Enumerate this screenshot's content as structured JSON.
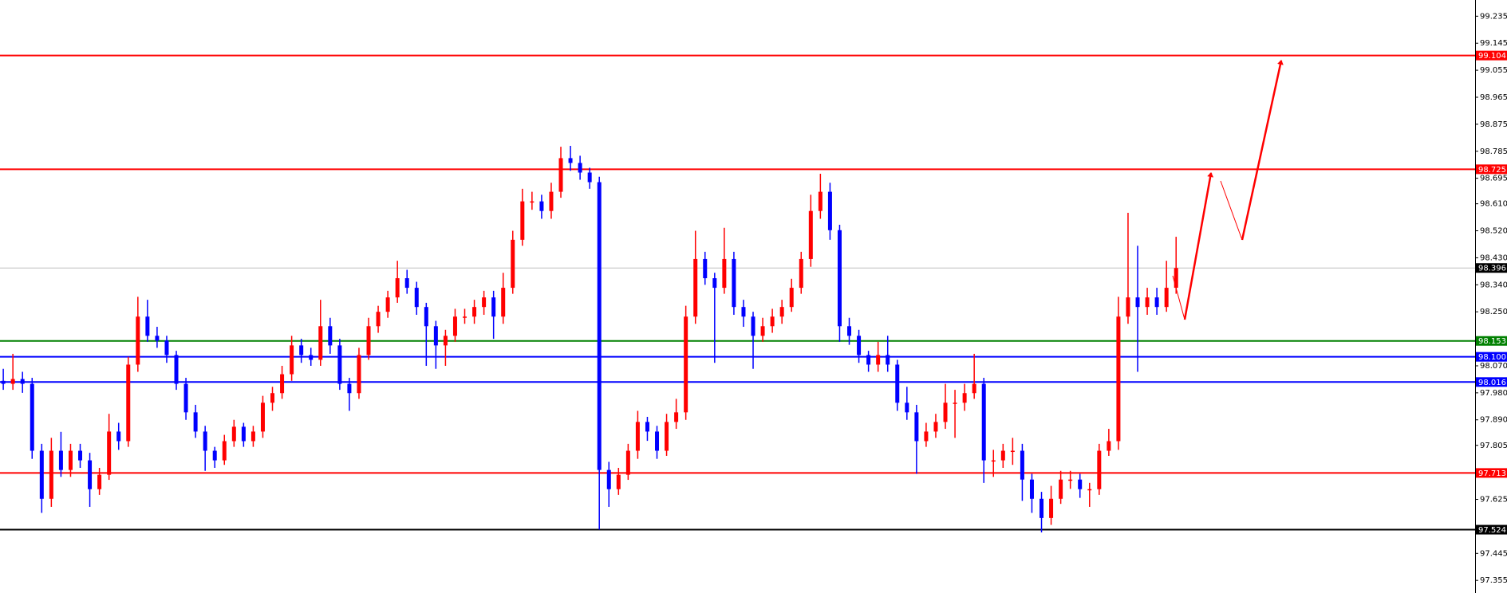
{
  "chart_data": {
    "type": "candlestick",
    "ylim": [
      97.313,
      99.289
    ],
    "yticks": [
      99.235,
      99.145,
      99.055,
      98.965,
      98.875,
      98.785,
      98.695,
      {
        "value": 98.61,
        "label": "98.610"
      },
      {
        "value": 98.52,
        "label": "98.520"
      },
      {
        "value": 98.43,
        "label": "98.430"
      },
      {
        "value": 98.34,
        "label": "98.340"
      },
      {
        "value": 98.25,
        "label": "98.250"
      },
      {
        "value": 98.07,
        "label": "98.070"
      },
      {
        "value": 97.98,
        "label": "97.980"
      },
      {
        "value": 97.89,
        "label": "97.890"
      },
      97.805,
      97.625,
      97.445,
      97.355
    ],
    "up_color": "#ff0000",
    "down_color": "#0000ff",
    "levels": [
      {
        "value": 99.104,
        "color": "#ff0000"
      },
      {
        "value": 98.725,
        "color": "#ff0000"
      },
      {
        "value": 98.396,
        "color": "#c0c0c0",
        "tag_color": "#000000"
      },
      {
        "value": 98.153,
        "color": "#008000"
      },
      {
        "value": 98.1,
        "label": "98.100",
        "color": "#0000ff"
      },
      {
        "value": 98.016,
        "color": "#0000ff"
      },
      {
        "value": 97.713,
        "color": "#ff0000"
      },
      {
        "value": 97.524,
        "color": "#000000"
      }
    ],
    "candles": [
      [
        98.02,
        98.06,
        97.99,
        98.01
      ],
      [
        98.01,
        98.11,
        97.99,
        98.026
      ],
      [
        98.026,
        98.05,
        97.98,
        98.01
      ],
      [
        98.01,
        98.03,
        97.76,
        97.787
      ],
      [
        97.787,
        97.81,
        97.58,
        97.627
      ],
      [
        97.627,
        97.83,
        97.6,
        97.787
      ],
      [
        97.787,
        97.85,
        97.7,
        97.723
      ],
      [
        97.723,
        97.81,
        97.7,
        97.787
      ],
      [
        97.787,
        97.81,
        97.73,
        97.755
      ],
      [
        97.755,
        97.78,
        97.6,
        97.659
      ],
      [
        97.659,
        97.73,
        97.64,
        97.707
      ],
      [
        97.707,
        97.91,
        97.69,
        97.851
      ],
      [
        97.851,
        97.88,
        97.79,
        97.819
      ],
      [
        97.819,
        98.1,
        97.8,
        98.074
      ],
      [
        98.074,
        98.3,
        98.05,
        98.234
      ],
      [
        98.234,
        98.29,
        98.15,
        98.17
      ],
      [
        98.17,
        98.2,
        98.13,
        98.154
      ],
      [
        98.154,
        98.17,
        98.08,
        98.106
      ],
      [
        98.106,
        98.12,
        97.99,
        98.01
      ],
      [
        98.01,
        98.03,
        97.89,
        97.915
      ],
      [
        97.915,
        97.94,
        97.83,
        97.851
      ],
      [
        97.851,
        97.87,
        97.72,
        97.787
      ],
      [
        97.787,
        97.8,
        97.73,
        97.755
      ],
      [
        97.755,
        97.84,
        97.74,
        97.819
      ],
      [
        97.819,
        97.89,
        97.8,
        97.867
      ],
      [
        97.867,
        97.88,
        97.8,
        97.819
      ],
      [
        97.819,
        97.87,
        97.8,
        97.851
      ],
      [
        97.851,
        97.97,
        97.83,
        97.947
      ],
      [
        97.947,
        98.0,
        97.92,
        97.979
      ],
      [
        97.979,
        98.07,
        97.96,
        98.042
      ],
      [
        98.042,
        98.17,
        98.02,
        98.138
      ],
      [
        98.138,
        98.16,
        98.08,
        98.106
      ],
      [
        98.106,
        98.13,
        98.07,
        98.09
      ],
      [
        98.09,
        98.29,
        98.07,
        98.202
      ],
      [
        98.202,
        98.23,
        98.11,
        98.138
      ],
      [
        98.138,
        98.16,
        97.99,
        98.01
      ],
      [
        98.01,
        98.03,
        97.92,
        97.979
      ],
      [
        97.979,
        98.13,
        97.96,
        98.106
      ],
      [
        98.106,
        98.23,
        98.09,
        98.202
      ],
      [
        98.202,
        98.27,
        98.18,
        98.25
      ],
      [
        98.25,
        98.32,
        98.23,
        98.298
      ],
      [
        98.298,
        98.42,
        98.28,
        98.362
      ],
      [
        98.362,
        98.39,
        98.31,
        98.33
      ],
      [
        98.33,
        98.35,
        98.24,
        98.266
      ],
      [
        98.266,
        98.28,
        98.07,
        98.202
      ],
      [
        98.202,
        98.22,
        98.06,
        98.138
      ],
      [
        98.138,
        98.19,
        98.07,
        98.17
      ],
      [
        98.17,
        98.26,
        98.15,
        98.234
      ],
      [
        98.234,
        98.26,
        98.21,
        98.234
      ],
      [
        98.234,
        98.29,
        98.21,
        98.266
      ],
      [
        98.266,
        98.32,
        98.24,
        98.298
      ],
      [
        98.298,
        98.32,
        98.16,
        98.234
      ],
      [
        98.234,
        98.38,
        98.21,
        98.33
      ],
      [
        98.33,
        98.52,
        98.31,
        98.49
      ],
      [
        98.49,
        98.66,
        98.47,
        98.618
      ],
      [
        98.618,
        98.65,
        98.59,
        98.618
      ],
      [
        98.618,
        98.64,
        98.56,
        98.586
      ],
      [
        98.586,
        98.68,
        98.56,
        98.65
      ],
      [
        98.65,
        98.8,
        98.63,
        98.762
      ],
      [
        98.762,
        98.803,
        98.72,
        98.746
      ],
      [
        98.746,
        98.77,
        98.69,
        98.714
      ],
      [
        98.714,
        98.73,
        98.66,
        98.682
      ],
      [
        98.682,
        98.7,
        97.524,
        97.723
      ],
      [
        97.723,
        97.75,
        97.6,
        97.659
      ],
      [
        97.659,
        97.73,
        97.64,
        97.707
      ],
      [
        97.707,
        97.81,
        97.69,
        97.787
      ],
      [
        97.787,
        97.92,
        97.76,
        97.883
      ],
      [
        97.883,
        97.9,
        97.82,
        97.851
      ],
      [
        97.851,
        97.87,
        97.76,
        97.787
      ],
      [
        97.787,
        97.91,
        97.77,
        97.883
      ],
      [
        97.883,
        97.96,
        97.86,
        97.915
      ],
      [
        97.915,
        98.27,
        97.89,
        98.234
      ],
      [
        98.234,
        98.52,
        98.21,
        98.426
      ],
      [
        98.426,
        98.45,
        98.34,
        98.362
      ],
      [
        98.362,
        98.38,
        98.08,
        98.33
      ],
      [
        98.33,
        98.53,
        98.31,
        98.426
      ],
      [
        98.426,
        98.45,
        98.24,
        98.266
      ],
      [
        98.266,
        98.29,
        98.2,
        98.234
      ],
      [
        98.234,
        98.25,
        98.06,
        98.17
      ],
      [
        98.17,
        98.23,
        98.15,
        98.202
      ],
      [
        98.202,
        98.26,
        98.18,
        98.234
      ],
      [
        98.234,
        98.29,
        98.21,
        98.266
      ],
      [
        98.266,
        98.36,
        98.25,
        98.33
      ],
      [
        98.33,
        98.45,
        98.31,
        98.426
      ],
      [
        98.426,
        98.64,
        98.4,
        98.586
      ],
      [
        98.586,
        98.71,
        98.56,
        98.65
      ],
      [
        98.65,
        98.68,
        98.49,
        98.522
      ],
      [
        98.522,
        98.54,
        98.15,
        98.202
      ],
      [
        98.202,
        98.23,
        98.14,
        98.17
      ],
      [
        98.17,
        98.19,
        98.08,
        98.106
      ],
      [
        98.106,
        98.12,
        98.05,
        98.074
      ],
      [
        98.074,
        98.15,
        98.05,
        98.106
      ],
      [
        98.106,
        98.17,
        98.05,
        98.074
      ],
      [
        98.074,
        98.09,
        97.92,
        97.947
      ],
      [
        97.947,
        98.0,
        97.89,
        97.915
      ],
      [
        97.915,
        97.94,
        97.71,
        97.819
      ],
      [
        97.819,
        97.88,
        97.8,
        97.851
      ],
      [
        97.851,
        97.91,
        97.83,
        97.883
      ],
      [
        97.883,
        98.01,
        97.86,
        97.947
      ],
      [
        97.947,
        97.99,
        97.83,
        97.947
      ],
      [
        97.947,
        98.01,
        97.92,
        97.979
      ],
      [
        97.979,
        98.11,
        97.96,
        98.01
      ],
      [
        98.01,
        98.03,
        97.68,
        97.755
      ],
      [
        97.755,
        97.79,
        97.7,
        97.755
      ],
      [
        97.755,
        97.81,
        97.73,
        97.787
      ],
      [
        97.787,
        97.83,
        97.74,
        97.787
      ],
      [
        97.787,
        97.81,
        97.62,
        97.691
      ],
      [
        97.691,
        97.71,
        97.58,
        97.627
      ],
      [
        97.627,
        97.65,
        97.515,
        97.563
      ],
      [
        97.563,
        97.67,
        97.54,
        97.627
      ],
      [
        97.627,
        97.72,
        97.61,
        97.691
      ],
      [
        97.691,
        97.72,
        97.66,
        97.691
      ],
      [
        97.691,
        97.71,
        97.63,
        97.659
      ],
      [
        97.659,
        97.68,
        97.6,
        97.659
      ],
      [
        97.659,
        97.81,
        97.64,
        97.787
      ],
      [
        97.787,
        97.86,
        97.77,
        97.819
      ],
      [
        97.819,
        98.3,
        97.79,
        98.234
      ],
      [
        98.234,
        98.58,
        98.21,
        98.298
      ],
      [
        98.298,
        98.47,
        98.05,
        98.266
      ],
      [
        98.266,
        98.33,
        98.24,
        98.298
      ],
      [
        98.298,
        98.33,
        98.24,
        98.266
      ],
      [
        98.266,
        98.42,
        98.25,
        98.33
      ],
      [
        98.33,
        98.5,
        98.31,
        98.396
      ]
    ]
  }
}
